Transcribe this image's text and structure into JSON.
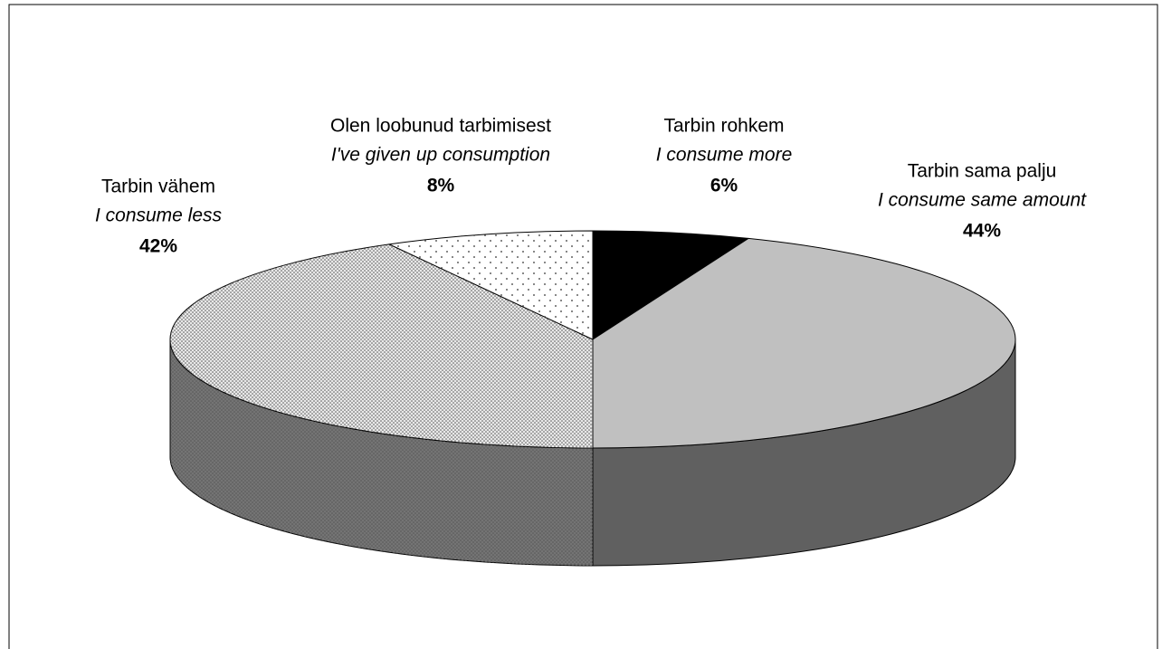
{
  "chart_data": {
    "type": "pie3d",
    "categories": [
      "Tarbin rohkem",
      "Tarbin sama palju",
      "Tarbin vähem",
      "Olen loobunud tarbimisest"
    ],
    "translations": [
      "I consume more",
      "I consume same amount",
      "I consume less",
      "I've given up consumption"
    ],
    "values": [
      6,
      44,
      42,
      8
    ],
    "value_labels": [
      "6%",
      "44%",
      "42%",
      "8%"
    ],
    "colors": [
      "#000000",
      "#c0c0c0",
      "#e8e8e8",
      "#ffffff"
    ],
    "patterns": [
      null,
      null,
      "dense",
      "sparse"
    ]
  }
}
